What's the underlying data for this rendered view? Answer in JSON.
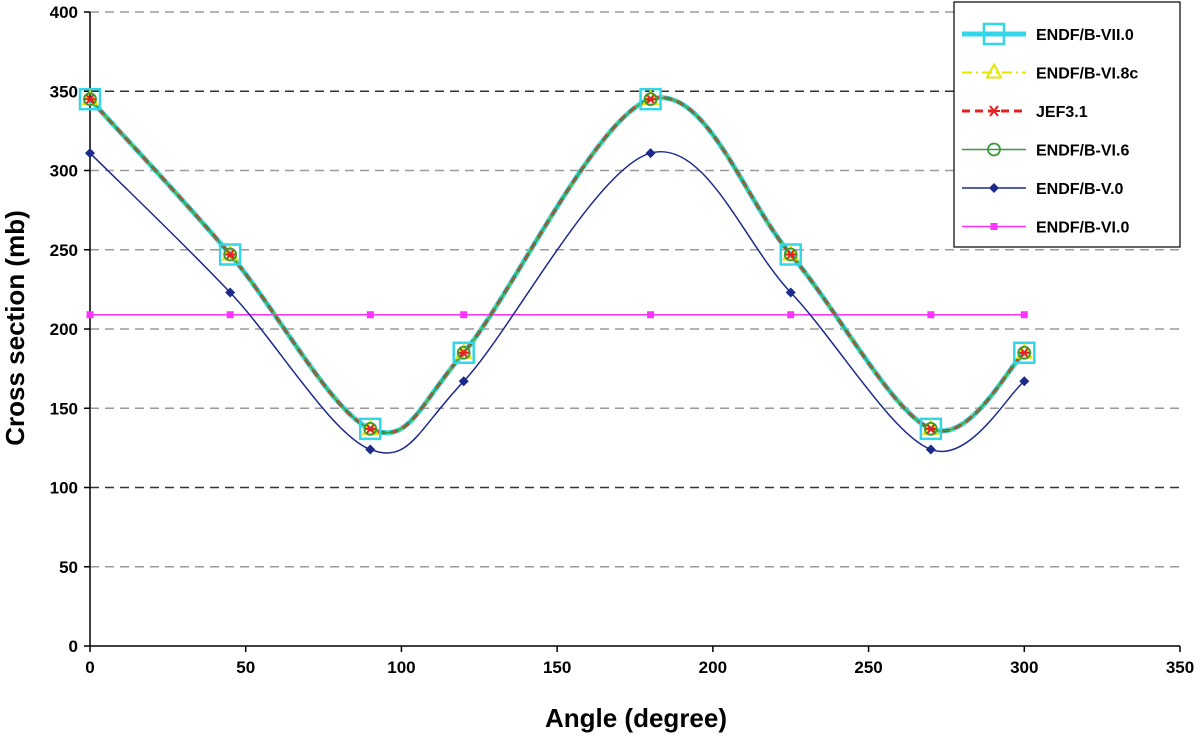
{
  "chart_data": {
    "type": "line",
    "xlabel": "Angle (degree)",
    "ylabel": "Cross section (mb)",
    "xlim": [
      0,
      350
    ],
    "ylim": [
      0,
      400
    ],
    "xticks": [
      0,
      50,
      100,
      150,
      200,
      250,
      300,
      350
    ],
    "yticks": [
      0,
      50,
      100,
      150,
      200,
      250,
      300,
      350,
      400
    ],
    "grid": "horizontal dashed",
    "legend_position": "top-right",
    "series": [
      {
        "name": "ENDF/B-VII.0",
        "color": "#33d6e6",
        "line": "solid-thick",
        "marker": "square-open",
        "x": [
          0,
          45,
          90,
          120,
          180,
          225,
          270,
          300
        ],
        "y": [
          345,
          247,
          137,
          185,
          345,
          247,
          137,
          185
        ]
      },
      {
        "name": "ENDF/B-VI.8c",
        "color": "#e6e600",
        "line": "dash-dot",
        "marker": "triangle-open",
        "x": [
          0,
          45,
          90,
          120,
          180,
          225,
          270,
          300
        ],
        "y": [
          345,
          247,
          137,
          185,
          345,
          247,
          137,
          185
        ]
      },
      {
        "name": "JEF3.1",
        "color": "#e62020",
        "line": "dashed-thick",
        "marker": "asterisk",
        "x": [
          0,
          45,
          90,
          120,
          180,
          225,
          270,
          300
        ],
        "y": [
          345,
          247,
          137,
          185,
          345,
          247,
          137,
          185
        ]
      },
      {
        "name": "ENDF/B-VI.6",
        "color": "#3a9a3a",
        "line": "solid",
        "marker": "circle-open",
        "x": [
          0,
          45,
          90,
          120,
          180,
          225,
          270,
          300
        ],
        "y": [
          345,
          247,
          137,
          185,
          345,
          247,
          137,
          185
        ]
      },
      {
        "name": "ENDF/B-V.0",
        "color": "#1c2a8c",
        "line": "solid",
        "marker": "diamond",
        "x": [
          0,
          45,
          90,
          120,
          180,
          225,
          270,
          300
        ],
        "y": [
          311,
          223,
          124,
          167,
          311,
          223,
          124,
          167
        ]
      },
      {
        "name": "ENDF/B-VI.0",
        "color": "#ff33ff",
        "line": "solid",
        "marker": "square-filled",
        "x": [
          0,
          45,
          90,
          120,
          180,
          225,
          270,
          300
        ],
        "y": [
          209,
          209,
          209,
          209,
          209,
          209,
          209,
          209
        ]
      }
    ]
  }
}
